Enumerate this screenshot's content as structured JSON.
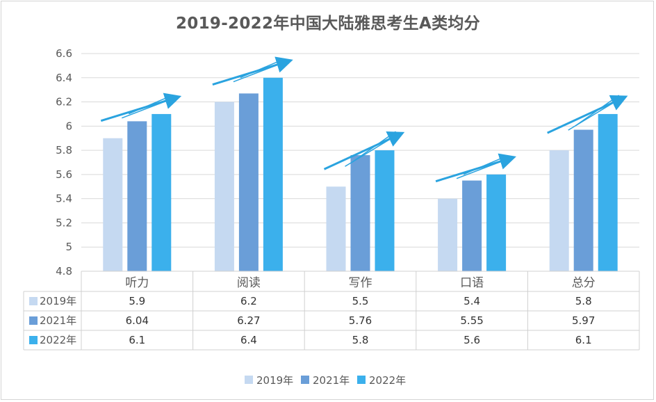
{
  "chart_data": {
    "type": "bar",
    "title": "2019-2022年中国大陆雅思考生A类均分",
    "categories": [
      "听力",
      "阅读",
      "写作",
      "口语",
      "总分"
    ],
    "series": [
      {
        "name": "2019年",
        "values": [
          5.9,
          6.2,
          5.5,
          5.4,
          5.8
        ],
        "color": "#c5d9f1"
      },
      {
        "name": "2021年",
        "values": [
          6.04,
          6.27,
          5.76,
          5.55,
          5.97
        ],
        "color": "#6a9ed8"
      },
      {
        "name": "2022年",
        "values": [
          6.1,
          6.4,
          5.8,
          5.6,
          6.1
        ],
        "color": "#3bb0ec"
      }
    ],
    "y_ticks": [
      "6.6",
      "6.4",
      "6.2",
      "6",
      "5.8",
      "5.6",
      "5.4",
      "5.2",
      "5",
      "4.8"
    ],
    "table_values": [
      [
        "5.9",
        "6.2",
        "5.5",
        "5.4",
        "5.8"
      ],
      [
        "6.04",
        "6.27",
        "5.76",
        "5.55",
        "5.97"
      ],
      [
        "6.1",
        "6.4",
        "5.8",
        "5.6",
        "6.1"
      ]
    ],
    "ylim": [
      4.8,
      6.6
    ],
    "grid": true,
    "legend": "bottom-center",
    "data_table": true,
    "annotation": "upward trend arrow over each category",
    "arrow_color": "#2aa3df"
  }
}
